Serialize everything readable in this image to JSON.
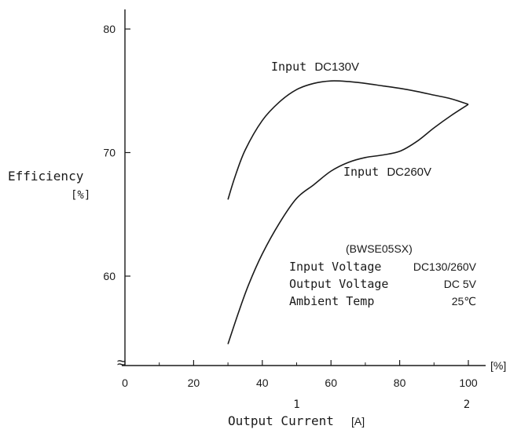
{
  "chart_data": {
    "type": "line",
    "title": "",
    "xlabel": "Output Current",
    "xlabel_unit": "[A]",
    "ylabel": "Efficiency",
    "ylabel_unit": "[%]",
    "x_unit_label": "[%]",
    "xlim": [
      0,
      100
    ],
    "ylim": [
      53,
      81
    ],
    "x_ticks": [
      "0",
      "20",
      "40",
      "60",
      "80",
      "100"
    ],
    "x_tick_values": [
      0,
      20,
      40,
      60,
      80,
      100
    ],
    "x_secondary_ticks": [
      "1",
      "2"
    ],
    "x_secondary_tick_values": [
      50,
      100
    ],
    "y_ticks": [
      "60",
      "70",
      "80"
    ],
    "y_tick_values": [
      60,
      70,
      80
    ],
    "grid": false,
    "axis_break_symbol": "≈",
    "series": [
      {
        "name": "Input DC130V",
        "label_prefix": "Input",
        "label_value": "DC130V",
        "x": [
          30,
          32,
          35,
          40,
          45,
          50,
          55,
          60,
          65,
          70,
          75,
          80,
          85,
          90,
          95,
          100
        ],
        "y": [
          66.2,
          68.0,
          70.2,
          72.6,
          74.1,
          75.1,
          75.6,
          75.8,
          75.75,
          75.6,
          75.4,
          75.2,
          74.95,
          74.65,
          74.35,
          73.9
        ]
      },
      {
        "name": "Input DC260V",
        "label_prefix": "Input",
        "label_value": "DC260V",
        "x": [
          30,
          33,
          36,
          40,
          45,
          50,
          55,
          60,
          65,
          70,
          75,
          80,
          85,
          90,
          95,
          100
        ],
        "y": [
          54.5,
          57.0,
          59.3,
          61.8,
          64.3,
          66.3,
          67.4,
          68.5,
          69.2,
          69.6,
          69.8,
          70.1,
          70.9,
          72.0,
          73.0,
          73.9
        ]
      }
    ],
    "annotation": {
      "model": "(BWSE05SX)",
      "rows": [
        {
          "label": "Input Voltage",
          "value": "DC130/260V"
        },
        {
          "label": "Output Voltage",
          "value": "DC 5V"
        },
        {
          "label": "Ambient Temp",
          "value": "25℃"
        }
      ]
    }
  },
  "colors": {
    "line": "#1a1a1a",
    "axis": "#1a1a1a",
    "background": "#ffffff"
  }
}
